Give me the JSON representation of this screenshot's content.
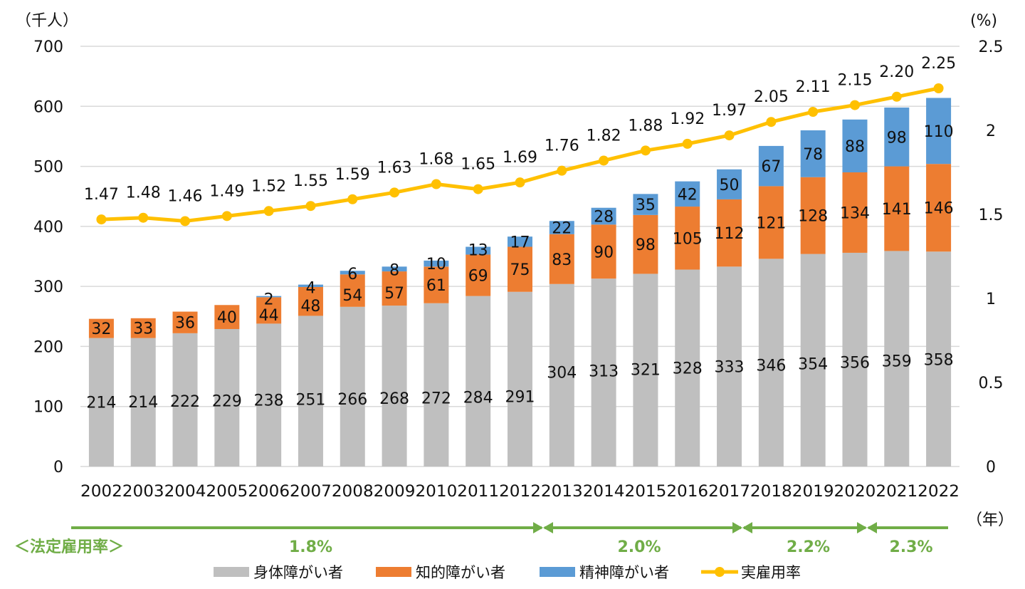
{
  "chart_data": {
    "type": "bar",
    "subtype": "stacked-bar-with-line",
    "title": "",
    "ylabel": "（千人）",
    "y2label": "(%)",
    "xlabel": "（年）",
    "ylim": [
      0,
      700
    ],
    "yticks": [
      0,
      100,
      200,
      300,
      400,
      500,
      600,
      700
    ],
    "y2lim": [
      0,
      2.5
    ],
    "y2ticks": [
      "0",
      "0.5",
      "1",
      "1.5",
      "2",
      "2.5"
    ],
    "y2tick_values": [
      0,
      0.5,
      1,
      1.5,
      2,
      2.5
    ],
    "grid": true,
    "legend_position": "bottom",
    "categories": [
      "2002",
      "2003",
      "2004",
      "2005",
      "2006",
      "2007",
      "2008",
      "2009",
      "2010",
      "2011",
      "2012",
      "2013",
      "2014",
      "2015",
      "2016",
      "2017",
      "2018",
      "2019",
      "2020",
      "2021",
      "2022"
    ],
    "series": [
      {
        "name": "身体障がい者",
        "type": "bar",
        "axis": "left",
        "color": "#bfbfbf",
        "values": [
          214,
          214,
          222,
          229,
          238,
          251,
          266,
          268,
          272,
          284,
          291,
          304,
          313,
          321,
          328,
          333,
          346,
          354,
          356,
          359,
          358
        ]
      },
      {
        "name": "知的障がい者",
        "type": "bar",
        "axis": "left",
        "color": "#ed7d31",
        "values": [
          32,
          33,
          36,
          40,
          44,
          48,
          54,
          57,
          61,
          69,
          75,
          83,
          90,
          98,
          105,
          112,
          121,
          128,
          134,
          141,
          146
        ]
      },
      {
        "name": "精神障がい者",
        "type": "bar",
        "axis": "left",
        "color": "#5b9bd5",
        "values": [
          0,
          0,
          0,
          0,
          2,
          4,
          6,
          8,
          10,
          13,
          17,
          22,
          28,
          35,
          42,
          50,
          67,
          78,
          88,
          98,
          110
        ]
      },
      {
        "name": "実雇用率",
        "type": "line",
        "axis": "right",
        "color": "#ffc000",
        "values": [
          1.47,
          1.48,
          1.46,
          1.49,
          1.52,
          1.55,
          1.59,
          1.63,
          1.68,
          1.65,
          1.69,
          1.76,
          1.82,
          1.88,
          1.92,
          1.97,
          2.05,
          2.11,
          2.15,
          2.2,
          2.25
        ],
        "labels": [
          "1.47",
          "1.48",
          "1.46",
          "1.49",
          "1.52",
          "1.55",
          "1.59",
          "1.63",
          "1.68",
          "1.65",
          "1.69",
          "1.76",
          "1.82",
          "1.88",
          "1.92",
          "1.97",
          "2.05",
          "2.11",
          "2.15",
          "2.20",
          "2.25"
        ]
      }
    ],
    "statutory_rate": {
      "label": "＜法定雇用率＞",
      "color": "#70ad47",
      "periods": [
        {
          "rate": "1.8%",
          "from": "2002",
          "to": "2012"
        },
        {
          "rate": "2.0%",
          "from": "2013",
          "to": "2017"
        },
        {
          "rate": "2.2%",
          "from": "2018",
          "to": "2020"
        },
        {
          "rate": "2.3%",
          "from": "2021",
          "to": "2022"
        }
      ]
    }
  }
}
